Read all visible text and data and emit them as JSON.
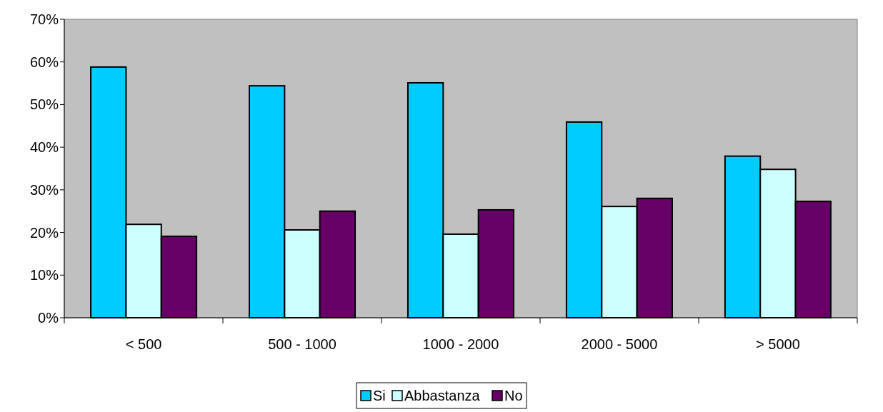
{
  "chart_data": {
    "type": "bar",
    "categories": [
      "< 500",
      "500 - 1000",
      "1000 - 2000",
      "2000 - 5000",
      "> 5000"
    ],
    "series": [
      {
        "name": "Si",
        "color": "#00ccff",
        "values": [
          58.8,
          54.4,
          55.1,
          45.9,
          37.9
        ]
      },
      {
        "name": "Abbastanza",
        "color": "#ccffff",
        "values": [
          21.9,
          20.6,
          19.6,
          26.1,
          34.8
        ]
      },
      {
        "name": "No",
        "color": "#660066",
        "values": [
          19.1,
          25.0,
          25.3,
          28.0,
          27.3
        ]
      }
    ],
    "ylim": [
      0,
      70
    ],
    "yticks": [
      {
        "value": 0,
        "label": "0%"
      },
      {
        "value": 10,
        "label": "10%"
      },
      {
        "value": 20,
        "label": "20%"
      },
      {
        "value": 30,
        "label": "30%"
      },
      {
        "value": 40,
        "label": "40%"
      },
      {
        "value": 50,
        "label": "50%"
      },
      {
        "value": 60,
        "label": "60%"
      },
      {
        "value": 70,
        "label": "70%"
      }
    ],
    "grid": false,
    "legend": "bottom"
  }
}
